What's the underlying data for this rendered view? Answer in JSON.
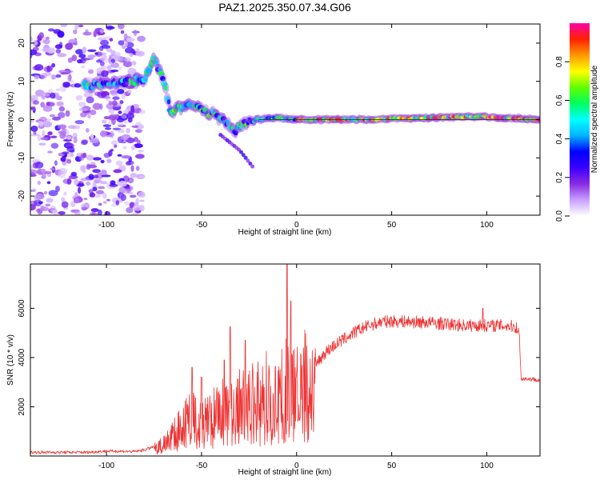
{
  "figure_title": "PAZ1.2025.350.07.34.G06",
  "chart_data": [
    {
      "type": "heatmap",
      "title": "PAZ1.2025.350.07.34.G06",
      "xlabel": "Height of straight line (km)",
      "ylabel": "Frequency (Hz)",
      "xlim": [
        -140,
        128
      ],
      "ylim": [
        -25,
        25
      ],
      "xticks": [
        -100,
        -50,
        0,
        50,
        100
      ],
      "yticks": [
        -20,
        -10,
        0,
        10,
        20
      ],
      "xtick_labels": [
        "-100",
        "-50",
        "0",
        "50",
        "100"
      ],
      "ytick_labels": [
        "-20",
        "-10",
        "0",
        "10",
        "20"
      ],
      "colorbar": {
        "label": "Normalized spectral amplitude",
        "range": [
          0,
          1
        ],
        "ticks": [
          0.0,
          0.2,
          0.4,
          0.6,
          0.8
        ],
        "tick_labels": [
          "0.0",
          "0.2",
          "0.4",
          "0.6",
          "0.8"
        ],
        "stops": [
          "#ffffff",
          "#c8a0ff",
          "#8a2be2",
          "#3b00ff",
          "#0000ff",
          "#00b4ff",
          "#00ffff",
          "#00ff60",
          "#60ff00",
          "#ffff00",
          "#ff9900",
          "#ff2200",
          "#ff00aa"
        ]
      },
      "ridge": [
        [
          -110,
          9
        ],
        [
          -95,
          9.5
        ],
        [
          -80,
          10.5
        ],
        [
          -75,
          16
        ],
        [
          -70,
          10
        ],
        [
          -66,
          2
        ],
        [
          -60,
          3.5
        ],
        [
          -52,
          3.5
        ],
        [
          -47,
          2
        ],
        [
          -42,
          1
        ],
        [
          -37,
          -1
        ],
        [
          -32,
          -3
        ],
        [
          -25,
          -0.5
        ],
        [
          -20,
          0
        ],
        [
          -10,
          0.5
        ],
        [
          0,
          0
        ],
        [
          10,
          0
        ],
        [
          30,
          0
        ],
        [
          60,
          0.3
        ],
        [
          90,
          0.8
        ],
        [
          110,
          0.5
        ],
        [
          128,
          0
        ]
      ],
      "noise_region": [
        -140,
        -85
      ],
      "branch": [
        [
          -40,
          -4
        ],
        [
          -30,
          -8
        ],
        [
          -22,
          -13
        ]
      ]
    },
    {
      "type": "line",
      "xlabel": "Height of straight line (km)",
      "ylabel": "SNR (10 * v/v)",
      "xlim": [
        -140,
        128
      ],
      "ylim": [
        0,
        7800
      ],
      "xticks": [
        -100,
        -50,
        0,
        50,
        100
      ],
      "yticks": [
        2000,
        4000,
        6000
      ],
      "xtick_labels": [
        "-100",
        "-50",
        "0",
        "50",
        "100"
      ],
      "ytick_labels": [
        "2000",
        "4000",
        "6000"
      ],
      "color": "#ee3333",
      "envelope": [
        [
          -140,
          150
        ],
        [
          -110,
          150
        ],
        [
          -100,
          200
        ],
        [
          -85,
          180
        ],
        [
          -80,
          250
        ],
        [
          -72,
          450
        ],
        [
          -65,
          900
        ],
        [
          -60,
          1500
        ],
        [
          -55,
          1800
        ],
        [
          -50,
          1400
        ],
        [
          -45,
          1700
        ],
        [
          -40,
          2100
        ],
        [
          -35,
          2000
        ],
        [
          -30,
          2300
        ],
        [
          -25,
          2500
        ],
        [
          -20,
          2500
        ],
        [
          -15,
          2900
        ],
        [
          -10,
          2900
        ],
        [
          -5,
          3100
        ],
        [
          0,
          2900
        ],
        [
          5,
          3400
        ],
        [
          10,
          3700
        ],
        [
          15,
          4200
        ],
        [
          20,
          4500
        ],
        [
          25,
          4750
        ],
        [
          30,
          5000
        ],
        [
          35,
          5200
        ],
        [
          40,
          5350
        ],
        [
          45,
          5450
        ],
        [
          50,
          5480
        ],
        [
          60,
          5450
        ],
        [
          70,
          5420
        ],
        [
          80,
          5350
        ],
        [
          90,
          5300
        ],
        [
          100,
          5300
        ],
        [
          110,
          5300
        ],
        [
          115,
          5250
        ],
        [
          117,
          5100
        ],
        [
          118,
          3150
        ],
        [
          128,
          3100
        ]
      ],
      "spikes": [
        [
          -55,
          3600
        ],
        [
          -50,
          3200
        ],
        [
          -38,
          3900
        ],
        [
          -35,
          5250
        ],
        [
          -27,
          4700
        ],
        [
          -5,
          7800
        ],
        [
          -3,
          6300
        ],
        [
          98,
          6000
        ]
      ]
    }
  ]
}
